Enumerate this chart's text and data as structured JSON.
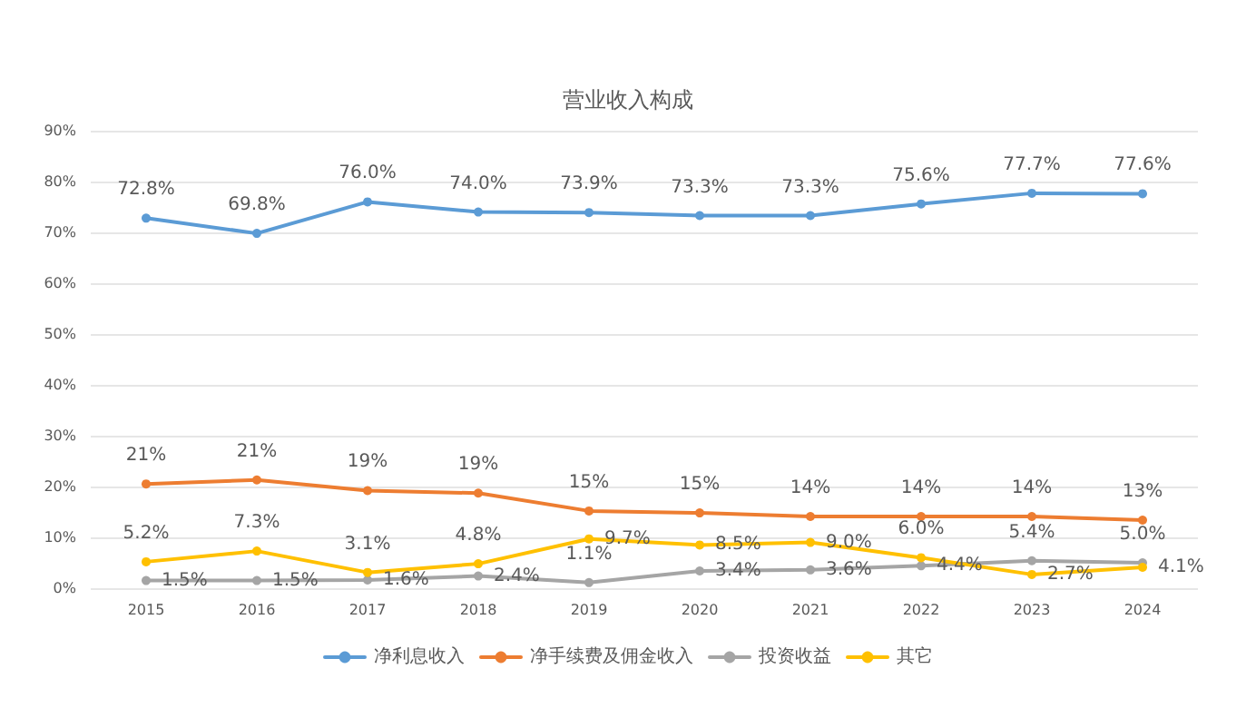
{
  "chart_data": {
    "type": "line",
    "title": "营业收入构成",
    "categories": [
      "2015",
      "2016",
      "2017",
      "2018",
      "2019",
      "2020",
      "2021",
      "2022",
      "2023",
      "2024"
    ],
    "series": [
      {
        "name": "净利息收入",
        "color": "#5b9bd5",
        "values": [
          72.8,
          69.8,
          76.0,
          74.0,
          73.9,
          73.3,
          73.3,
          75.6,
          77.7,
          77.6
        ],
        "value_labels": [
          "72.8%",
          "69.8%",
          "76.0%",
          "74.0%",
          "73.9%",
          "73.3%",
          "73.3%",
          "75.6%",
          "77.7%",
          "77.6%"
        ]
      },
      {
        "name": "净手续费及佣金收入",
        "color": "#ed7d31",
        "values": [
          20.5,
          21.3,
          19.2,
          18.7,
          15.2,
          14.8,
          14.1,
          14.1,
          14.1,
          13.4
        ],
        "value_labels": [
          "21%",
          "21%",
          "19%",
          "19%",
          "15%",
          "15%",
          "14%",
          "14%",
          "14%",
          "13%"
        ]
      },
      {
        "name": "投资收益",
        "color": "#a5a5a5",
        "values": [
          1.5,
          1.5,
          1.6,
          2.4,
          1.1,
          3.4,
          3.6,
          4.4,
          5.4,
          5.0
        ],
        "value_labels": [
          "1.5%",
          "1.5%",
          "1.6%",
          "2.4%",
          "1.1%",
          "3.4%",
          "3.6%",
          "4.4%",
          "5.4%",
          "5.0%"
        ]
      },
      {
        "name": "其它",
        "color": "#ffc000",
        "values": [
          5.2,
          7.3,
          3.1,
          4.8,
          9.7,
          8.5,
          9.0,
          6.0,
          2.7,
          4.1
        ],
        "value_labels": [
          "5.2%",
          "7.3%",
          "3.1%",
          "4.8%",
          "9.7%",
          "8.5%",
          "9.0%",
          "6.0%",
          "2.7%",
          "4.1%"
        ]
      }
    ],
    "ylim": [
      0,
      90
    ],
    "yticks": [
      {
        "value": 0,
        "label": "0%"
      },
      {
        "value": 10,
        "label": "10%"
      },
      {
        "value": 20,
        "label": "20%"
      },
      {
        "value": 30,
        "label": "30%"
      },
      {
        "value": 40,
        "label": "40%"
      },
      {
        "value": 50,
        "label": "50%"
      },
      {
        "value": 60,
        "label": "60%"
      },
      {
        "value": 70,
        "label": "70%"
      },
      {
        "value": 80,
        "label": "80%"
      },
      {
        "value": 90,
        "label": "90%"
      }
    ],
    "grid": "y",
    "legend": "bottom",
    "marker": "circle",
    "line_style": "solid"
  }
}
